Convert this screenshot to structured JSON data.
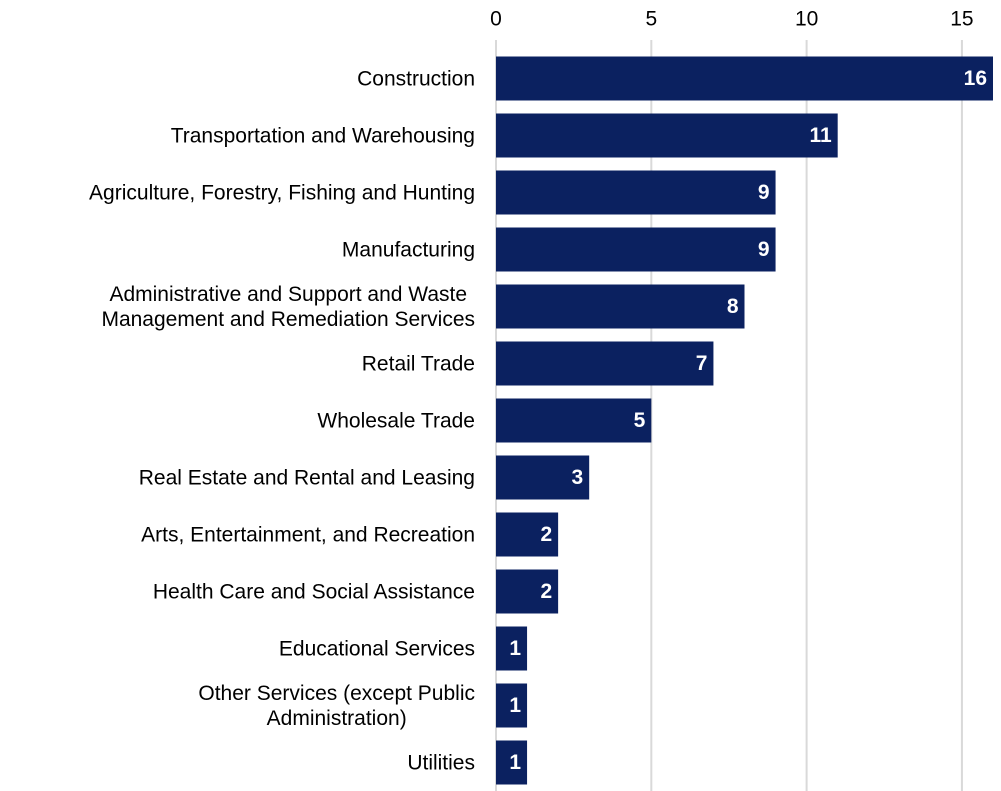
{
  "chart_data": {
    "type": "bar",
    "orientation": "horizontal",
    "categories": [
      "Construction",
      "Transportation and Warehousing",
      "Agriculture, Forestry, Fishing and Hunting",
      "Manufacturing",
      "Administrative and Support and Waste\nManagement and Remediation Services",
      "Retail Trade",
      "Wholesale Trade",
      "Real Estate and Rental and Leasing",
      "Arts, Entertainment, and Recreation",
      "Health Care and Social Assistance",
      "Educational Services",
      "Other Services (except Public\nAdministration)",
      "Utilities"
    ],
    "values": [
      16,
      11,
      9,
      9,
      8,
      7,
      5,
      3,
      2,
      2,
      1,
      1,
      1
    ],
    "color": "#0b2160",
    "xlim": [
      0,
      16
    ],
    "xticks": [
      0,
      5,
      10,
      15
    ],
    "grid": true
  }
}
